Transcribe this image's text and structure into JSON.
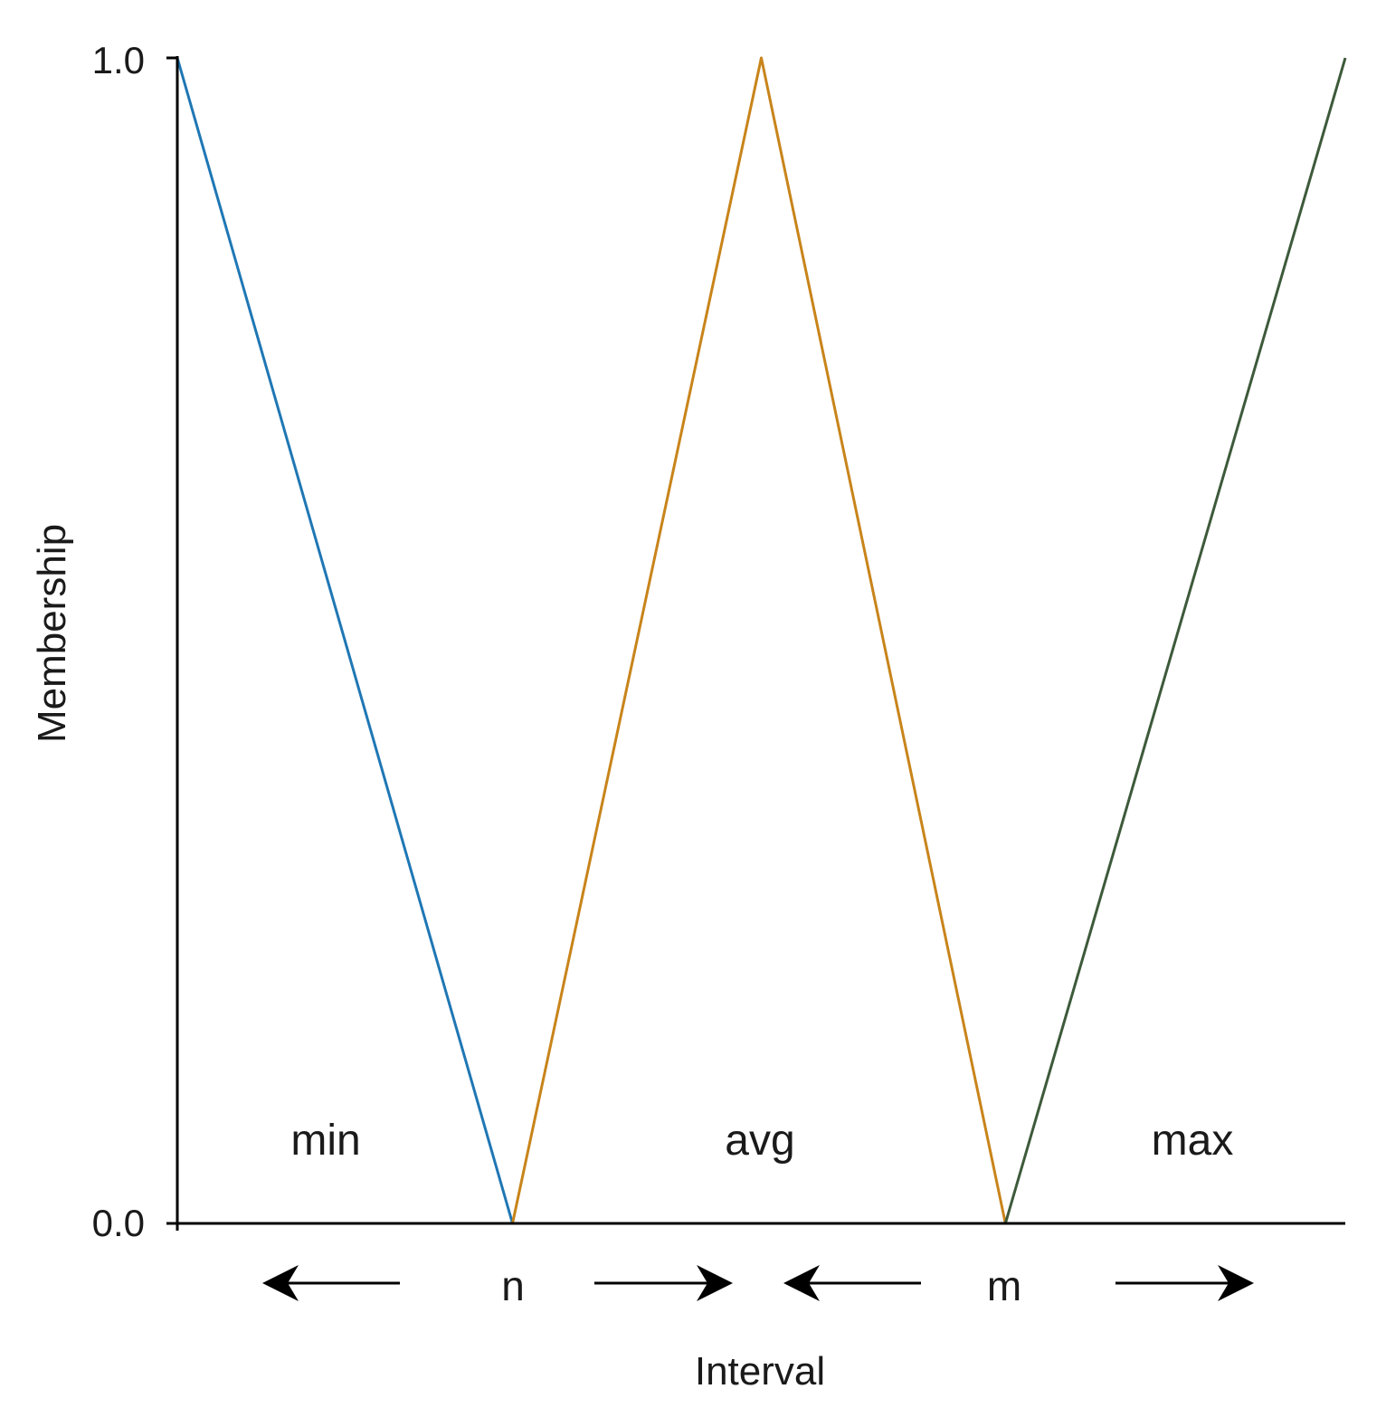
{
  "chart_data": {
    "type": "line",
    "xlabel": "Interval",
    "ylabel": "Membership",
    "ylim": [
      0.0,
      1.0
    ],
    "y_ticks": [
      "1.0",
      "0.0"
    ],
    "grid": false,
    "region_labels": [
      "min",
      "avg",
      "max"
    ],
    "point_labels": [
      "n",
      "m"
    ],
    "series": [
      {
        "x": [
          0,
          0.287
        ],
        "y": [
          1.0,
          0.0
        ],
        "color": "#1f77b4"
      },
      {
        "x": [
          0.287,
          0.5,
          0.709
        ],
        "y": [
          0.0,
          1.0,
          0.0
        ],
        "color": "#c8841a"
      },
      {
        "x": [
          0.709,
          1.0
        ],
        "y": [
          0.0,
          1.0
        ],
        "color": "#3d5a3a"
      }
    ]
  }
}
